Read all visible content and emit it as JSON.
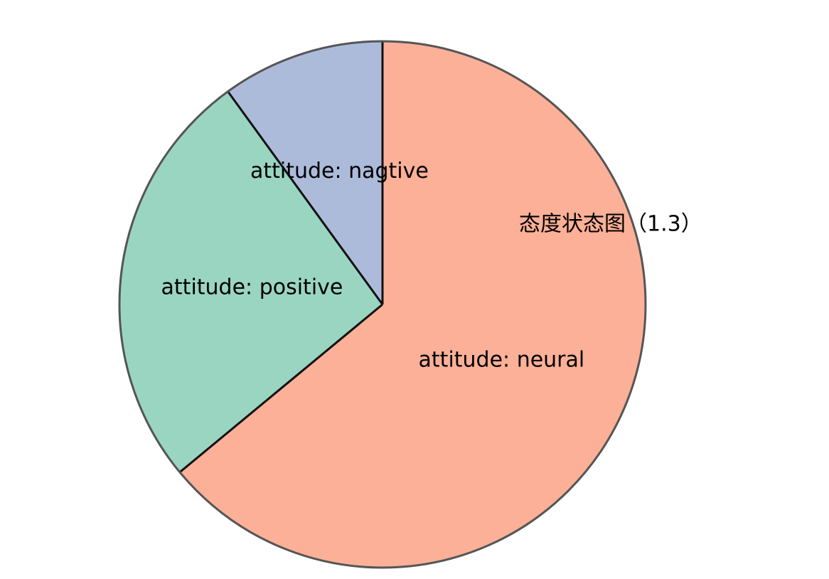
{
  "chart_data": {
    "type": "pie",
    "title": "态度状态图（1.3）",
    "slices": [
      {
        "label": "attitude: neural",
        "value": 64,
        "color": "#fbb097"
      },
      {
        "label": "attitude: positive",
        "value": 26,
        "color": "#9ad5c2"
      },
      {
        "label": "attitude: nagtive",
        "value": 10,
        "color": "#adbbdb"
      }
    ],
    "outline_color": "#555555",
    "separator_color": "#111111",
    "legend": "none"
  }
}
